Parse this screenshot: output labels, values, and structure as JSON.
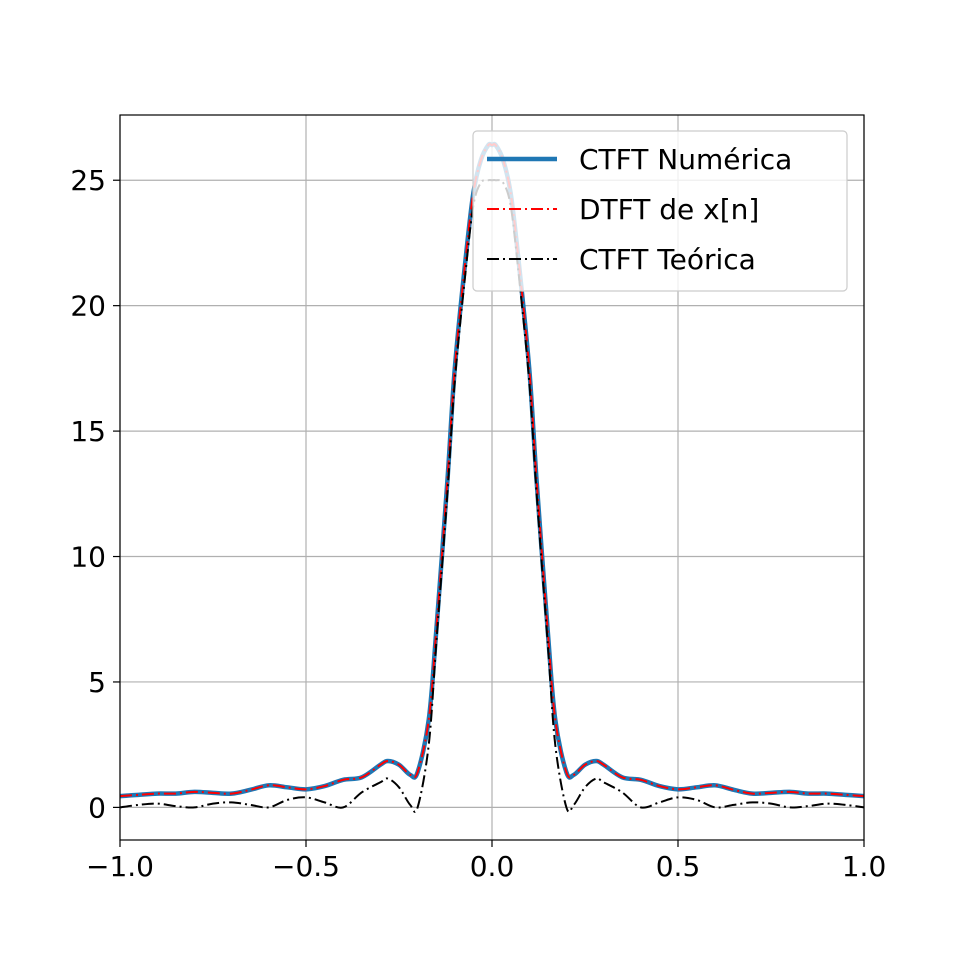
{
  "chart_data": {
    "type": "line",
    "title": "",
    "xlabel": "",
    "ylabel": "",
    "xlim": [
      -1.0,
      1.0
    ],
    "ylim": [
      -1.3,
      27.6
    ],
    "xticks": [
      -1.0,
      -0.5,
      0.0,
      0.5,
      1.0
    ],
    "xtick_labels": [
      "−1.0",
      "−0.5",
      "0.0",
      "0.5",
      "1.0"
    ],
    "yticks": [
      0,
      5,
      10,
      15,
      20,
      25
    ],
    "ytick_labels": [
      "0",
      "5",
      "10",
      "15",
      "20",
      "25"
    ],
    "grid": true,
    "legend_position": "top-right",
    "series": [
      {
        "name": "CTFT Numérica",
        "color": "#1f77b4",
        "style": "solid-thick",
        "x": [
          -1.0,
          -0.95,
          -0.9,
          -0.85,
          -0.8,
          -0.75,
          -0.7,
          -0.65,
          -0.6,
          -0.55,
          -0.5,
          -0.45,
          -0.4,
          -0.35,
          -0.3,
          -0.28,
          -0.25,
          -0.22,
          -0.2,
          -0.17,
          -0.15,
          -0.12,
          -0.1,
          -0.07,
          -0.05,
          -0.03,
          -0.01,
          0.0,
          0.01,
          0.03,
          0.05,
          0.07,
          0.1,
          0.12,
          0.15,
          0.17,
          0.2,
          0.22,
          0.25,
          0.28,
          0.3,
          0.35,
          0.4,
          0.45,
          0.5,
          0.55,
          0.6,
          0.65,
          0.7,
          0.75,
          0.8,
          0.85,
          0.9,
          0.95,
          1.0
        ],
        "y": [
          0.45,
          0.5,
          0.55,
          0.55,
          0.62,
          0.58,
          0.55,
          0.7,
          0.88,
          0.8,
          0.72,
          0.85,
          1.1,
          1.2,
          1.7,
          1.85,
          1.7,
          1.3,
          1.4,
          3.5,
          7.0,
          13.0,
          17.5,
          22.0,
          24.5,
          25.8,
          26.4,
          26.4,
          26.4,
          25.8,
          24.5,
          22.0,
          17.5,
          13.0,
          7.0,
          3.5,
          1.4,
          1.3,
          1.7,
          1.85,
          1.7,
          1.2,
          1.1,
          0.85,
          0.72,
          0.8,
          0.88,
          0.7,
          0.55,
          0.58,
          0.62,
          0.55,
          0.55,
          0.5,
          0.45
        ]
      },
      {
        "name": "DTFT de x[n]",
        "color": "#ff0000",
        "style": "dashdot",
        "x": [
          -1.0,
          -0.95,
          -0.9,
          -0.85,
          -0.8,
          -0.75,
          -0.7,
          -0.65,
          -0.6,
          -0.55,
          -0.5,
          -0.45,
          -0.4,
          -0.35,
          -0.3,
          -0.28,
          -0.25,
          -0.22,
          -0.2,
          -0.17,
          -0.15,
          -0.12,
          -0.1,
          -0.07,
          -0.05,
          -0.03,
          -0.01,
          0.0,
          0.01,
          0.03,
          0.05,
          0.07,
          0.1,
          0.12,
          0.15,
          0.17,
          0.2,
          0.22,
          0.25,
          0.28,
          0.3,
          0.35,
          0.4,
          0.45,
          0.5,
          0.55,
          0.6,
          0.65,
          0.7,
          0.75,
          0.8,
          0.85,
          0.9,
          0.95,
          1.0
        ],
        "y": [
          0.45,
          0.5,
          0.55,
          0.55,
          0.62,
          0.58,
          0.55,
          0.7,
          0.88,
          0.8,
          0.72,
          0.85,
          1.1,
          1.2,
          1.7,
          1.85,
          1.7,
          1.3,
          1.4,
          3.5,
          7.0,
          13.0,
          17.5,
          22.0,
          24.5,
          25.8,
          26.4,
          26.4,
          26.4,
          25.8,
          24.5,
          22.0,
          17.5,
          13.0,
          7.0,
          3.5,
          1.4,
          1.3,
          1.7,
          1.85,
          1.7,
          1.2,
          1.1,
          0.85,
          0.72,
          0.8,
          0.88,
          0.7,
          0.55,
          0.58,
          0.62,
          0.55,
          0.55,
          0.5,
          0.45
        ]
      },
      {
        "name": "CTFT Teórica",
        "color": "#000000",
        "style": "dashdot",
        "x": [
          -1.0,
          -0.95,
          -0.9,
          -0.85,
          -0.8,
          -0.75,
          -0.7,
          -0.65,
          -0.6,
          -0.55,
          -0.5,
          -0.45,
          -0.4,
          -0.35,
          -0.3,
          -0.28,
          -0.25,
          -0.22,
          -0.2,
          -0.17,
          -0.15,
          -0.12,
          -0.1,
          -0.07,
          -0.05,
          -0.03,
          -0.01,
          0.0,
          0.01,
          0.03,
          0.05,
          0.07,
          0.1,
          0.12,
          0.15,
          0.17,
          0.2,
          0.22,
          0.25,
          0.28,
          0.3,
          0.35,
          0.4,
          0.45,
          0.5,
          0.55,
          0.6,
          0.65,
          0.7,
          0.75,
          0.8,
          0.85,
          0.9,
          0.95,
          1.0
        ],
        "y": [
          0.0,
          0.1,
          0.15,
          0.05,
          0.0,
          0.15,
          0.2,
          0.1,
          0.0,
          0.3,
          0.4,
          0.2,
          0.0,
          0.6,
          1.0,
          1.15,
          0.8,
          0.1,
          0.0,
          2.5,
          6.5,
          12.5,
          17.0,
          21.5,
          24.0,
          24.9,
          25.0,
          25.0,
          25.0,
          24.9,
          24.0,
          21.5,
          17.0,
          12.5,
          6.5,
          2.5,
          0.0,
          0.1,
          0.8,
          1.15,
          1.0,
          0.6,
          0.0,
          0.2,
          0.4,
          0.3,
          0.0,
          0.1,
          0.2,
          0.15,
          0.0,
          0.05,
          0.15,
          0.1,
          0.0
        ]
      }
    ]
  }
}
